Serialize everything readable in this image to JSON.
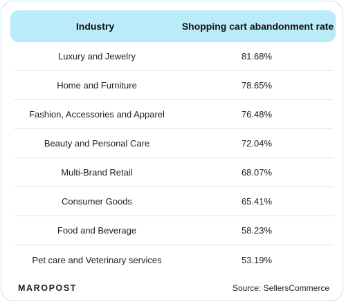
{
  "chart_data": {
    "type": "table",
    "columns": [
      "Industry",
      "Shopping cart abandonment rate"
    ],
    "rows": [
      {
        "industry": "Luxury and Jewelry",
        "rate": "81.68%"
      },
      {
        "industry": "Home and Furniture",
        "rate": "78.65%"
      },
      {
        "industry": "Fashion, Accessories and Apparel",
        "rate": "76.48%"
      },
      {
        "industry": "Beauty and Personal Care",
        "rate": "72.04%"
      },
      {
        "industry": "Multi-Brand Retail",
        "rate": "68.07%"
      },
      {
        "industry": "Consumer Goods",
        "rate": "65.41%"
      },
      {
        "industry": "Food and Beverage",
        "rate": "58.23%"
      },
      {
        "industry": "Pet care and Veterinary services",
        "rate": "53.19%"
      }
    ],
    "header_color": "#b9ebfa",
    "border_color": "#bfe9f3"
  },
  "footer": {
    "logo": "MAROPOST",
    "source": "Source: SellersCommerce"
  }
}
